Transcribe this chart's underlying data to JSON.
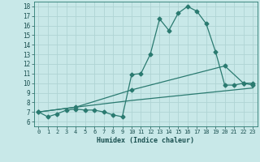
{
  "xlabel": "Humidex (Indice chaleur)",
  "xlim": [
    -0.5,
    23.5
  ],
  "ylim": [
    5.5,
    18.5
  ],
  "yticks": [
    6,
    7,
    8,
    9,
    10,
    11,
    12,
    13,
    14,
    15,
    16,
    17,
    18
  ],
  "xticks": [
    0,
    1,
    2,
    3,
    4,
    5,
    6,
    7,
    8,
    9,
    10,
    11,
    12,
    13,
    14,
    15,
    16,
    17,
    18,
    19,
    20,
    21,
    22,
    23
  ],
  "background_color": "#c8e8e8",
  "grid_color": "#afd4d4",
  "line_color": "#2a7a70",
  "line1_x": [
    0,
    1,
    2,
    3,
    4,
    5,
    6,
    7,
    8,
    9,
    10,
    11,
    12,
    13,
    14,
    15,
    16,
    17,
    18,
    19,
    20,
    21,
    22,
    23
  ],
  "line1_y": [
    7.0,
    6.5,
    6.8,
    7.2,
    7.3,
    7.2,
    7.2,
    7.0,
    6.7,
    6.5,
    10.9,
    11.0,
    13.0,
    16.7,
    15.5,
    17.3,
    18.0,
    17.5,
    16.2,
    13.3,
    9.8,
    9.8,
    10.0,
    9.8
  ],
  "line2_x": [
    0,
    4,
    10,
    20,
    22,
    23
  ],
  "line2_y": [
    7.0,
    7.5,
    9.3,
    11.8,
    10.0,
    10.0
  ],
  "line3_x": [
    0,
    4,
    10,
    23
  ],
  "line3_y": [
    7.0,
    7.5,
    8.2,
    9.5
  ],
  "markersize": 2.5,
  "linewidth": 0.9
}
